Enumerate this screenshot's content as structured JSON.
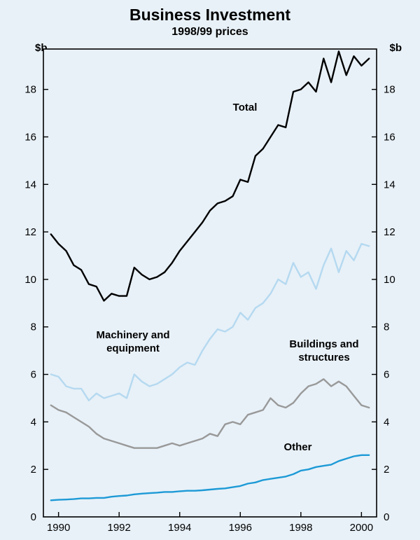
{
  "header": {
    "title": "Business Investment",
    "subtitle": "1998/99 prices"
  },
  "axes": {
    "unit_left": "$b",
    "unit_right": "$b",
    "x_tick_labels": [
      "1990",
      "1992",
      "1994",
      "1996",
      "1998",
      "2000"
    ],
    "x_tick_values": [
      1990,
      1992,
      1994,
      1996,
      1998,
      2000
    ],
    "y_tick_values": [
      0,
      2,
      4,
      6,
      8,
      10,
      12,
      14,
      16,
      18
    ],
    "x_range": [
      1989.5,
      2000.5
    ],
    "y_range": [
      0,
      19.7
    ],
    "grid": "off",
    "legend": "inline-labels"
  },
  "labels": {
    "total": "Total",
    "machinery": "Machinery and equipment",
    "buildings": "Buildings and structures",
    "other": "Other"
  },
  "colors": {
    "background": "#e8f1f8",
    "axis": "#000000",
    "total": "#000000",
    "machinery": "#b5d9f0",
    "buildings": "#999999",
    "other": "#1d9ad6"
  },
  "chart_data": {
    "type": "line",
    "title": "Business Investment",
    "subtitle": "1998/99 prices",
    "ylabel": "$b",
    "xlabel": "",
    "ylim": [
      0,
      19.7
    ],
    "xlim": [
      1989.5,
      2000.5
    ],
    "x": [
      1989.75,
      1990.0,
      1990.25,
      1990.5,
      1990.75,
      1991.0,
      1991.25,
      1991.5,
      1991.75,
      1992.0,
      1992.25,
      1992.5,
      1992.75,
      1993.0,
      1993.25,
      1993.5,
      1993.75,
      1994.0,
      1994.25,
      1994.5,
      1994.75,
      1995.0,
      1995.25,
      1995.5,
      1995.75,
      1996.0,
      1996.25,
      1996.5,
      1996.75,
      1997.0,
      1997.25,
      1997.5,
      1997.75,
      1998.0,
      1998.25,
      1998.5,
      1998.75,
      1999.0,
      1999.25,
      1999.5,
      1999.75,
      2000.0,
      2000.25
    ],
    "series": [
      {
        "name": "Total",
        "color_key": "total",
        "values": [
          11.9,
          11.5,
          11.2,
          10.6,
          10.4,
          9.8,
          9.7,
          9.1,
          9.4,
          9.3,
          9.3,
          10.5,
          10.2,
          10.0,
          10.1,
          10.3,
          10.7,
          11.2,
          11.6,
          12.0,
          12.4,
          12.9,
          13.2,
          13.3,
          13.5,
          14.2,
          14.1,
          15.2,
          15.5,
          16.0,
          16.5,
          16.4,
          17.9,
          18.0,
          18.3,
          17.9,
          19.3,
          18.3,
          19.6,
          18.6,
          19.4,
          19.0,
          19.3
        ]
      },
      {
        "name": "Machinery and equipment",
        "color_key": "machinery",
        "values": [
          6.0,
          5.9,
          5.5,
          5.4,
          5.4,
          4.9,
          5.2,
          5.0,
          5.1,
          5.2,
          5.0,
          6.0,
          5.7,
          5.5,
          5.6,
          5.8,
          6.0,
          6.3,
          6.5,
          6.4,
          7.0,
          7.5,
          7.9,
          7.8,
          8.0,
          8.6,
          8.3,
          8.8,
          9.0,
          9.4,
          10.0,
          9.8,
          10.7,
          10.1,
          10.3,
          9.6,
          10.6,
          11.3,
          10.3,
          11.2,
          10.8,
          11.5,
          11.4
        ]
      },
      {
        "name": "Buildings and structures",
        "color_key": "buildings",
        "values": [
          4.7,
          4.5,
          4.4,
          4.2,
          4.0,
          3.8,
          3.5,
          3.3,
          3.2,
          3.1,
          3.0,
          2.9,
          2.9,
          2.9,
          2.9,
          3.0,
          3.1,
          3.0,
          3.1,
          3.2,
          3.3,
          3.5,
          3.4,
          3.9,
          4.0,
          3.9,
          4.3,
          4.4,
          4.5,
          5.0,
          4.7,
          4.6,
          4.8,
          5.2,
          5.5,
          5.6,
          5.8,
          5.5,
          5.7,
          5.5,
          5.1,
          4.7,
          4.6
        ]
      },
      {
        "name": "Other",
        "color_key": "other",
        "values": [
          0.7,
          0.72,
          0.73,
          0.75,
          0.78,
          0.78,
          0.8,
          0.8,
          0.85,
          0.88,
          0.9,
          0.95,
          0.98,
          1.0,
          1.02,
          1.05,
          1.05,
          1.08,
          1.1,
          1.1,
          1.12,
          1.15,
          1.18,
          1.2,
          1.25,
          1.3,
          1.4,
          1.45,
          1.55,
          1.6,
          1.65,
          1.7,
          1.8,
          1.95,
          2.0,
          2.1,
          2.15,
          2.2,
          2.35,
          2.45,
          2.55,
          2.6,
          2.6
        ]
      }
    ]
  }
}
